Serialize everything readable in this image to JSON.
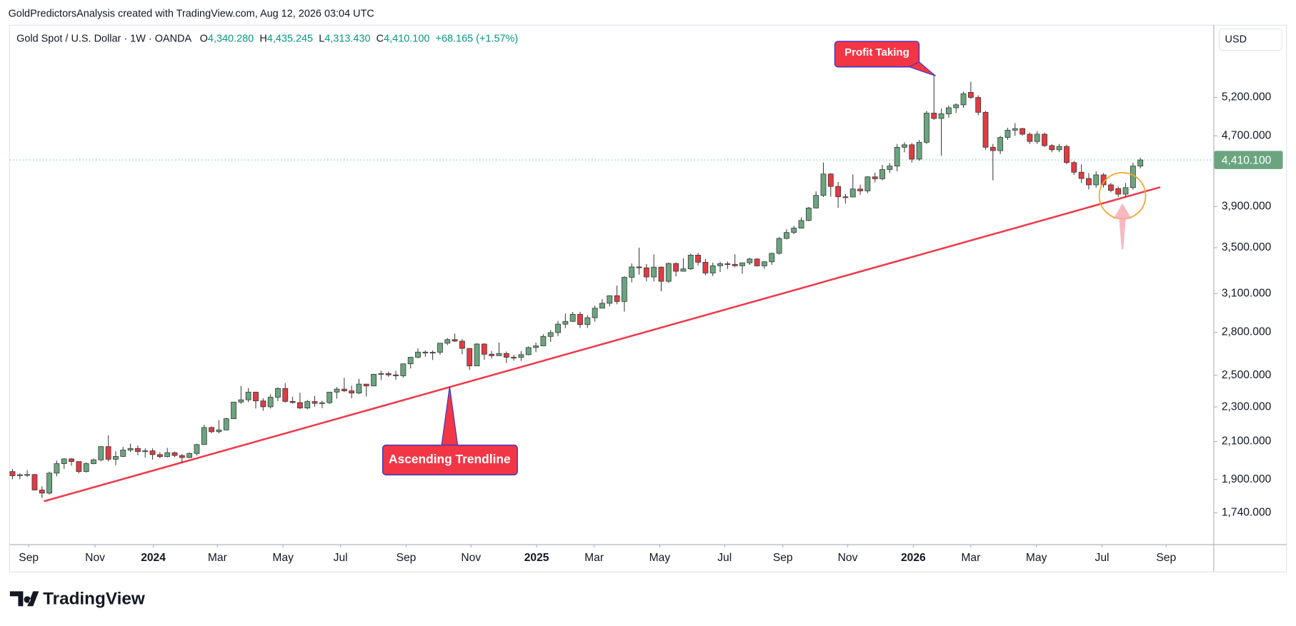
{
  "header": "GoldPredictorsAnalysis created with TradingView.com, Aug 12, 2026 03:04 UTC",
  "logo": "TradingView",
  "chart_data": {
    "type": "candlestick",
    "symbol": "Gold Spot / U.S. Dollar · 1W · OANDA",
    "legend": [
      {
        "key": "O",
        "value": "4,340.280"
      },
      {
        "key": "H",
        "value": "4,435.245"
      },
      {
        "key": "L",
        "value": "4,313.430"
      },
      {
        "key": "C",
        "value": "4,410.100"
      }
    ],
    "change": "+68.165 (+1.57%)",
    "currency": "USD",
    "up_color": "#6aa57f",
    "down_color": "#e23a41",
    "wick_color": "#3a3a3a",
    "trendline_color": "#f03a4a",
    "log_scale": true,
    "ylim": [
      1602,
      6297
    ],
    "yticks": [
      {
        "value": 1740,
        "label": "1,740.000"
      },
      {
        "value": 1900,
        "label": "1,900.000"
      },
      {
        "value": 2100,
        "label": "2,100.000"
      },
      {
        "value": 2300,
        "label": "2,300.000"
      },
      {
        "value": 2500,
        "label": "2,500.000"
      },
      {
        "value": 2800,
        "label": "2,800.000"
      },
      {
        "value": 3100,
        "label": "3,100.000"
      },
      {
        "value": 3500,
        "label": "3,500.000"
      },
      {
        "value": 3900,
        "label": "3,900.000"
      },
      {
        "value": 4700,
        "label": "4,700.000"
      },
      {
        "value": 5200,
        "label": "5,200.000"
      }
    ],
    "last_price": {
      "value": 4410.1,
      "label": "4,410.100"
    },
    "xlim": [
      -0.35,
      162.9
    ],
    "xticks": [
      {
        "value": 2.2,
        "label": "Sep"
      },
      {
        "value": 11.2,
        "label": "Nov"
      },
      {
        "value": 19.1,
        "label": "2024"
      },
      {
        "value": 27.8,
        "label": "Mar"
      },
      {
        "value": 36.7,
        "label": "May"
      },
      {
        "value": 44.5,
        "label": "Jul"
      },
      {
        "value": 53.4,
        "label": "Sep"
      },
      {
        "value": 62.2,
        "label": "Nov"
      },
      {
        "value": 71.1,
        "label": "2025"
      },
      {
        "value": 78.9,
        "label": "Mar"
      },
      {
        "value": 87.8,
        "label": "May"
      },
      {
        "value": 96.6,
        "label": "Jul"
      },
      {
        "value": 104.5,
        "label": "Sep"
      },
      {
        "value": 113.3,
        "label": "Nov"
      },
      {
        "value": 122.2,
        "label": "2026"
      },
      {
        "value": 130.0,
        "label": "Mar"
      },
      {
        "value": 138.9,
        "label": "May"
      },
      {
        "value": 147.8,
        "label": "Jul"
      },
      {
        "value": 156.5,
        "label": "Sep"
      }
    ],
    "open": [
      1940,
      1919,
      1924,
      1925,
      1848,
      1833,
      1932,
      1981,
      2006,
      1992,
      1940,
      1981,
      2001,
      2072,
      2004,
      2019,
      2053,
      2062,
      2045,
      2049,
      2029,
      2018,
      2039,
      2024,
      2013,
      2035,
      2083,
      2179,
      2155,
      2165,
      2230,
      2330,
      2344,
      2392,
      2337,
      2301,
      2360,
      2415,
      2334,
      2327,
      2294,
      2333,
      2322,
      2326,
      2392,
      2411,
      2400,
      2386,
      2443,
      2431,
      2507,
      2512,
      2503,
      2497,
      2577,
      2622,
      2658,
      2653,
      2657,
      2721,
      2747,
      2736,
      2684,
      2563,
      2715,
      2643,
      2633,
      2648,
      2622,
      2621,
      2640,
      2690,
      2702,
      2770,
      2798,
      2861,
      2882,
      2936,
      2858,
      2910,
      2984,
      3023,
      3084,
      3037,
      3237,
      3327,
      3319,
      3240,
      3325,
      3203,
      3357,
      3289,
      3310,
      3432,
      3368,
      3274,
      3337,
      3355,
      3350,
      3337,
      3363,
      3397,
      3336,
      3372,
      3448,
      3586,
      3643,
      3685,
      3760,
      3886,
      4017,
      4250,
      4113,
      4002,
      4000,
      4085,
      4065,
      4218,
      4197,
      4300,
      4340,
      4560,
      4590,
      4420,
      4620,
      4990,
      4920,
      4980,
      5060,
      5100,
      5270,
      5200,
      5000,
      4560,
      4520,
      4680,
      4770,
      4790,
      4720,
      4630,
      4720,
      4580,
      4530,
      4570,
      4380,
      4270,
      4200,
      4130,
      4240,
      4130,
      4090,
      4030,
      4100,
      4340.28
    ],
    "high": [
      1953,
      1932,
      1947,
      1928,
      1866,
      1940,
      1997,
      2009,
      2010,
      1993,
      1988,
      2008,
      2075,
      2135,
      2047,
      2071,
      2088,
      2078,
      2062,
      2062,
      2041,
      2065,
      2045,
      2032,
      2041,
      2088,
      2195,
      2185,
      2222,
      2236,
      2330,
      2431,
      2418,
      2393,
      2353,
      2378,
      2422,
      2450,
      2364,
      2388,
      2343,
      2368,
      2338,
      2392,
      2424,
      2484,
      2433,
      2477,
      2443,
      2510,
      2531,
      2525,
      2529,
      2579,
      2625,
      2685,
      2670,
      2670,
      2722,
      2758,
      2790,
      2750,
      2685,
      2722,
      2721,
      2666,
      2726,
      2662,
      2639,
      2665,
      2697,
      2726,
      2786,
      2817,
      2886,
      2942,
      2954,
      2956,
      2930,
      3004,
      3057,
      3086,
      3167,
      3245,
      3357,
      3500,
      3352,
      3438,
      3330,
      3366,
      3365,
      3403,
      3446,
      3452,
      3398,
      3365,
      3374,
      3375,
      3439,
      3363,
      3409,
      3404,
      3378,
      3453,
      3600,
      3674,
      3707,
      3791,
      3897,
      4059,
      4381,
      4260,
      4161,
      4030,
      4245,
      4132,
      4225,
      4264,
      4353,
      4374,
      4600,
      4620,
      4610,
      4650,
      5020,
      5500,
      5050,
      5090,
      5120,
      5280,
      5420,
      5230,
      5020,
      4600,
      4700,
      4800,
      4860,
      4800,
      4740,
      4760,
      4740,
      4600,
      4600,
      4590,
      4400,
      4360,
      4260,
      4280,
      4260,
      4150,
      4110,
      4150,
      4380,
      4435.245
    ],
    "low": [
      1901,
      1901,
      1913,
      1846,
      1810,
      1826,
      1916,
      1954,
      1970,
      1931,
      1935,
      1977,
      1993,
      1992,
      1973,
      2016,
      2042,
      2025,
      2013,
      2002,
      2009,
      2014,
      2015,
      1984,
      2010,
      2024,
      2083,
      2146,
      2146,
      2162,
      2228,
      2319,
      2330,
      2291,
      2277,
      2291,
      2335,
      2326,
      2320,
      2287,
      2286,
      2302,
      2293,
      2318,
      2351,
      2392,
      2353,
      2380,
      2364,
      2430,
      2470,
      2491,
      2471,
      2485,
      2546,
      2615,
      2625,
      2603,
      2640,
      2707,
      2730,
      2643,
      2536,
      2563,
      2605,
      2614,
      2632,
      2583,
      2599,
      2597,
      2635,
      2657,
      2700,
      2730,
      2772,
      2832,
      2877,
      2832,
      2832,
      2880,
      2982,
      2999,
      3015,
      2957,
      3194,
      3260,
      3202,
      3202,
      3120,
      3190,
      3245,
      3287,
      3301,
      3340,
      3255,
      3247,
      3283,
      3309,
      3324,
      3268,
      3345,
      3330,
      3311,
      3344,
      3436,
      3577,
      3627,
      3683,
      3752,
      3880,
      4000,
      4004,
      3887,
      3930,
      3997,
      4022,
      4040,
      4157,
      4180,
      4260,
      4280,
      4500,
      4380,
      4400,
      4600,
      4900,
      4460,
      4930,
      4990,
      5060,
      5180,
      4960,
      4530,
      4180,
      4480,
      4650,
      4700,
      4700,
      4600,
      4600,
      4560,
      4500,
      4500,
      4360,
      4240,
      4150,
      4080,
      4100,
      4100,
      4050,
      4000,
      4000,
      4080,
      4313.43
    ],
    "close": [
      1919,
      1924,
      1925,
      1848,
      1833,
      1932,
      1981,
      2006,
      1992,
      1940,
      1981,
      2001,
      2072,
      2004,
      2019,
      2053,
      2062,
      2045,
      2049,
      2029,
      2018,
      2039,
      2024,
      2013,
      2035,
      2083,
      2179,
      2155,
      2165,
      2230,
      2330,
      2344,
      2392,
      2337,
      2301,
      2360,
      2415,
      2334,
      2327,
      2294,
      2333,
      2322,
      2326,
      2392,
      2411,
      2400,
      2386,
      2443,
      2431,
      2507,
      2512,
      2503,
      2497,
      2577,
      2622,
      2658,
      2653,
      2657,
      2721,
      2747,
      2736,
      2684,
      2563,
      2715,
      2643,
      2633,
      2648,
      2622,
      2621,
      2640,
      2690,
      2702,
      2770,
      2798,
      2861,
      2882,
      2936,
      2858,
      2910,
      2984,
      3023,
      3084,
      3037,
      3237,
      3327,
      3319,
      3240,
      3325,
      3203,
      3357,
      3289,
      3310,
      3432,
      3368,
      3274,
      3337,
      3355,
      3350,
      3337,
      3363,
      3397,
      3336,
      3372,
      3448,
      3586,
      3643,
      3685,
      3760,
      3886,
      4017,
      4250,
      4113,
      4002,
      4000,
      4085,
      4065,
      4218,
      4197,
      4300,
      4340,
      4560,
      4590,
      4420,
      4620,
      4990,
      4920,
      4980,
      5060,
      5100,
      5250,
      5200,
      5000,
      4560,
      4520,
      4680,
      4770,
      4790,
      4720,
      4630,
      4720,
      4580,
      4530,
      4570,
      4380,
      4270,
      4200,
      4130,
      4240,
      4130,
      4070,
      4030,
      4100,
      4340,
      4410.1
    ],
    "trendline": {
      "start": {
        "x": 4.26,
        "y": 1794
      },
      "end": {
        "x": 155.7,
        "y": 4105
      }
    },
    "annotations": [
      "Profit Taking",
      "Ascending Trendline"
    ]
  }
}
